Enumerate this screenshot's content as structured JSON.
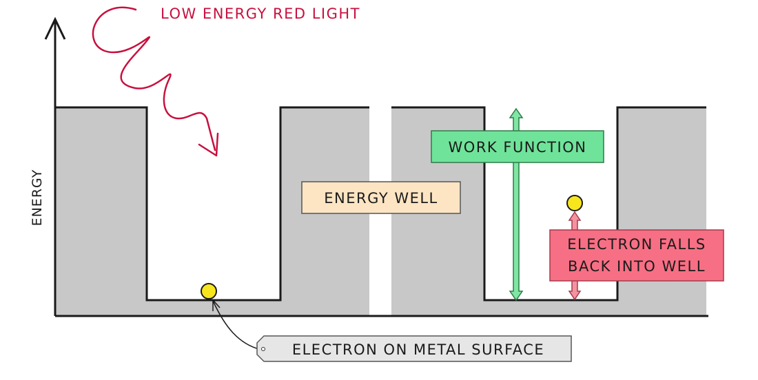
{
  "axis": {
    "ylabel": "ENERGY"
  },
  "labels": {
    "light": "LOW ENERGY RED LIGHT",
    "energy_well": "ENERGY WELL",
    "work_function": "WORK FUNCTION",
    "falls_line1": "ELECTRON FALLS",
    "falls_line2": "BACK INTO WELL",
    "electron_surface": "ELECTRON ON METAL SURFACE"
  },
  "colors": {
    "metal": "#c8c8c8",
    "outline": "#1a1a1a",
    "light": "#c8103e",
    "energy_well_box": "#fde5c4",
    "work_function_box": "#6fe39a",
    "work_function_arrow": "#7fe6a4",
    "falls_box": "#f76f84",
    "falls_arrow": "#f4929f",
    "electron": "#f7e61e",
    "tag": "#e6e6e6"
  }
}
